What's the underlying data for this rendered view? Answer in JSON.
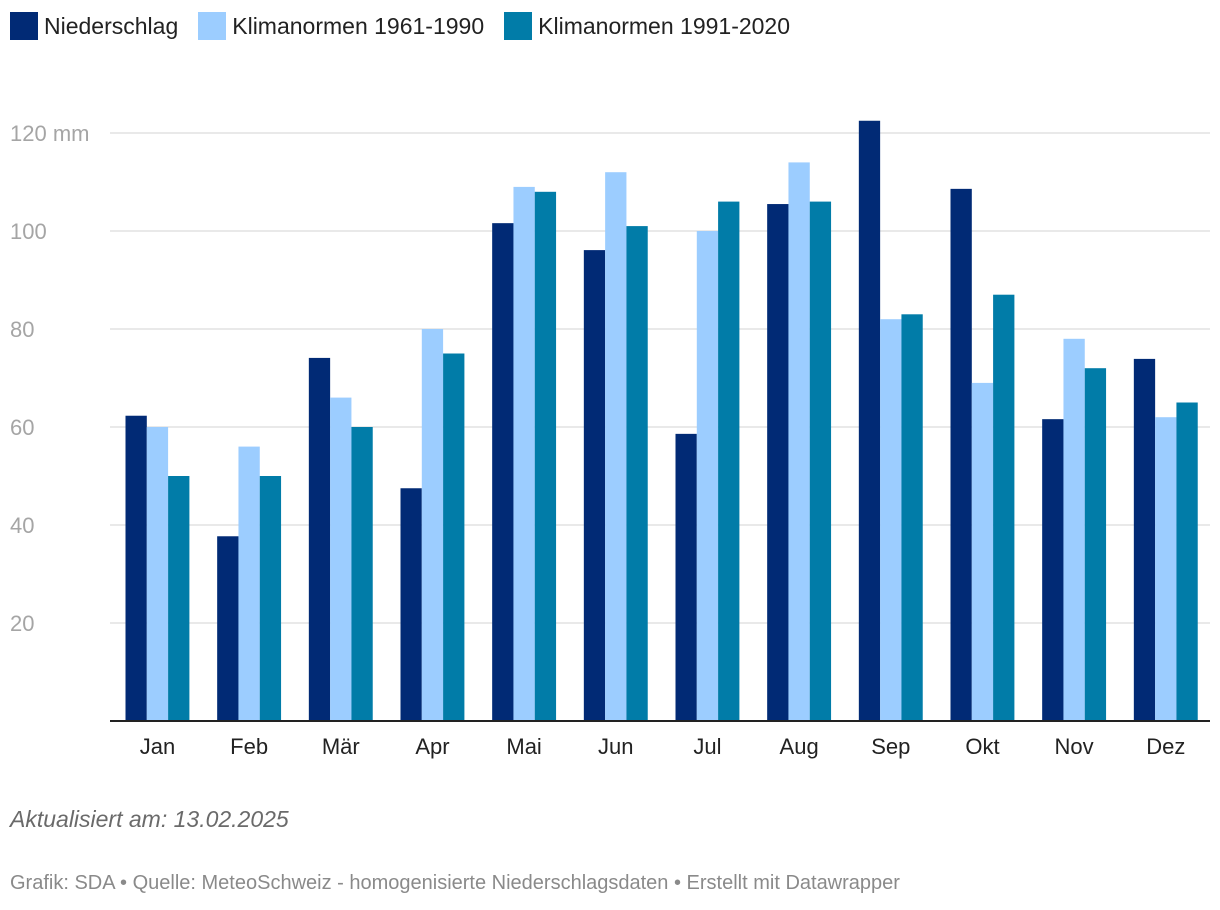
{
  "legend": [
    {
      "label": "Niederschlag",
      "color": "#012a75"
    },
    {
      "label": "Klimanormen 1961-1990",
      "color": "#9ccdff"
    },
    {
      "label": "Klimanormen 1991-2020",
      "color": "#017ca8"
    }
  ],
  "chart_data": {
    "type": "bar",
    "title": "",
    "xlabel": "",
    "ylabel": "",
    "ylim": [
      0,
      125
    ],
    "y_ticks": [
      20,
      40,
      60,
      80,
      100,
      120
    ],
    "y_tick_labels": [
      "20",
      "40",
      "60",
      "80",
      "100",
      "120 mm"
    ],
    "y_unit": "mm",
    "grid": true,
    "legend_position": "top-left",
    "categories": [
      "Jan",
      "Feb",
      "Mär",
      "Apr",
      "Mai",
      "Jun",
      "Jul",
      "Aug",
      "Sep",
      "Okt",
      "Nov",
      "Dez"
    ],
    "series": [
      {
        "name": "Niederschlag",
        "color": "#012a75",
        "values": [
          62.3,
          37.7,
          74.1,
          47.5,
          101.6,
          96.1,
          58.6,
          105.5,
          122.5,
          108.6,
          61.6,
          73.9
        ]
      },
      {
        "name": "Klimanormen 1961-1990",
        "color": "#9ccdff",
        "values": [
          60,
          56,
          66,
          80,
          109,
          112,
          100,
          114,
          82,
          69,
          78,
          62
        ]
      },
      {
        "name": "Klimanormen 1991-2020",
        "color": "#017ca8",
        "values": [
          50,
          50,
          60,
          75,
          108,
          101,
          106,
          106,
          83,
          87,
          72,
          65
        ]
      }
    ]
  },
  "footer": {
    "updated": "Aktualisiert am: 13.02.2025",
    "source": "Grafik: SDA • Quelle: MeteoSchweiz - homogenisierte Niederschlagsdaten • Erstellt mit Datawrapper"
  }
}
